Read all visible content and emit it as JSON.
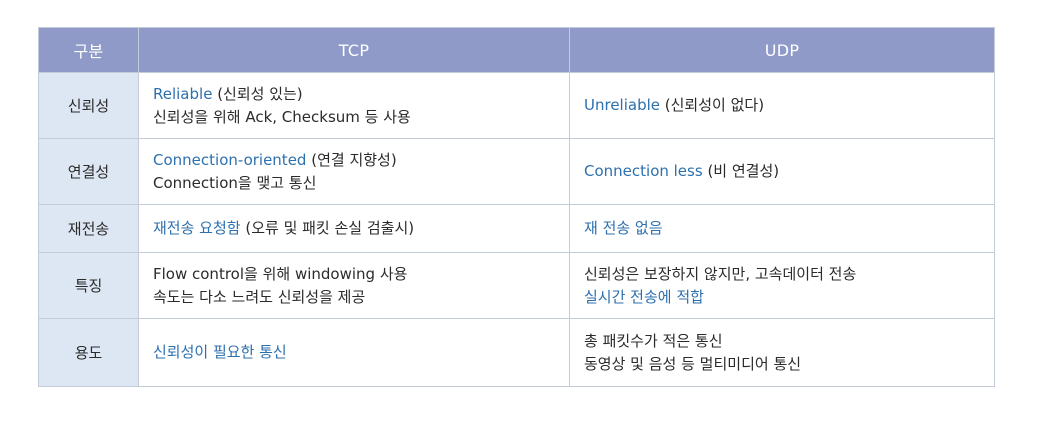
{
  "header": {
    "category": "구분",
    "tcp": "TCP",
    "udp": "UDP"
  },
  "rows": [
    {
      "label": "신뢰성",
      "tcp": [
        {
          "hl": "Reliable",
          "rest": " (신뢰성 있는)"
        },
        {
          "hl": "",
          "rest": "신뢰성을 위해 Ack, Checksum 등 사용"
        }
      ],
      "udp": [
        {
          "hl": "Unreliable",
          "rest": " (신뢰성이 없다)"
        }
      ]
    },
    {
      "label": "연결성",
      "tcp": [
        {
          "hl": "Connection-oriented",
          "rest": " (연결 지향성)"
        },
        {
          "hl": "",
          "rest": "Connection을 맺고 통신"
        }
      ],
      "udp": [
        {
          "hl": "Connection less",
          "rest": " (비 연결성)"
        }
      ]
    },
    {
      "label": "재전송",
      "tcp": [
        {
          "hl": "재전송 요청함",
          "rest": " (오류 및 패킷 손실 검출시)"
        }
      ],
      "udp": [
        {
          "hl": "재 전송 없음",
          "rest": ""
        }
      ]
    },
    {
      "label": "특징",
      "tcp": [
        {
          "hl": "",
          "rest": "Flow control을 위해 windowing 사용"
        },
        {
          "hl": "",
          "rest": "속도는 다소 느려도 신뢰성을 제공"
        }
      ],
      "udp": [
        {
          "hl": "",
          "rest": "신뢰성은 보장하지 않지만, 고속데이터 전송"
        },
        {
          "hl": "실시간 전송에 적합",
          "rest": ""
        }
      ]
    },
    {
      "label": "용도",
      "tcp": [
        {
          "hl": "신뢰성이 필요한 통신",
          "rest": ""
        }
      ],
      "udp": [
        {
          "hl": "",
          "rest": "총 패킷수가 적은 통신"
        },
        {
          "hl": "",
          "rest": "동영상 및 음성 등 멀티미디어 통신"
        }
      ]
    }
  ],
  "colors": {
    "header_bg": "#8f9ac8",
    "rowhead_bg": "#dde7f3",
    "highlight": "#2d70ae",
    "border": "#c4cbd8"
  }
}
